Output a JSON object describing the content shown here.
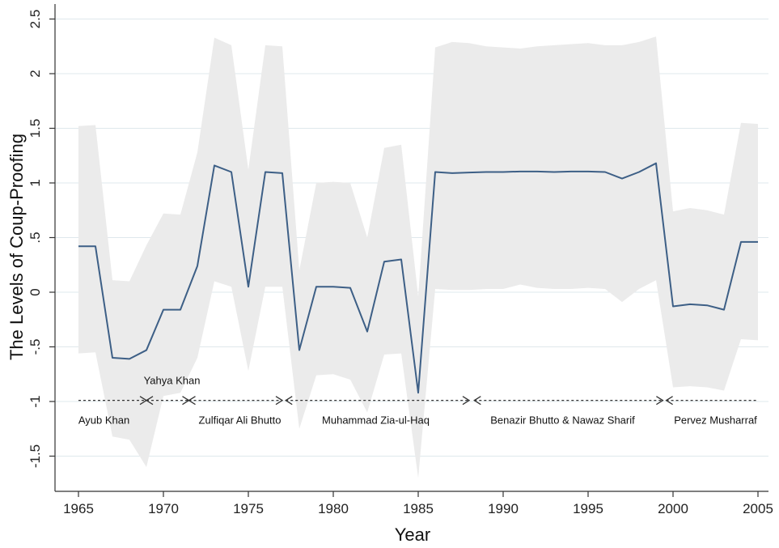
{
  "chart_data": {
    "type": "line",
    "title": "",
    "xlabel": "Year",
    "ylabel": "The Levels of Coup-Proofing",
    "xlim": [
      1965,
      2005
    ],
    "ylim": [
      -1.75,
      2.6
    ],
    "grid": true,
    "x_ticks": [
      1965,
      1970,
      1975,
      1980,
      1985,
      1990,
      1995,
      2000,
      2005
    ],
    "x_tick_labels": [
      "1965",
      "1970",
      "1975",
      "1980",
      "1985",
      "1990",
      "1995",
      "2000",
      "2005"
    ],
    "y_ticks": [
      -1.5,
      -1,
      -0.5,
      0,
      0.5,
      1,
      1.5,
      2,
      2.5
    ],
    "y_tick_labels": [
      "-1.5",
      "-1",
      "-.5",
      "0",
      ".5",
      "1",
      "1.5",
      "2",
      "2.5"
    ],
    "colors": {
      "line": "#3d5f86",
      "band": "#ebebeb",
      "grid": "#dfe8ec",
      "axis": "#333333",
      "arrow": "#333333"
    },
    "x": [
      1965,
      1966,
      1967,
      1968,
      1969,
      1970,
      1971,
      1972,
      1973,
      1974,
      1975,
      1976,
      1977,
      1978,
      1979,
      1980,
      1981,
      1982,
      1983,
      1984,
      1985,
      1986,
      1987,
      1988,
      1989,
      1990,
      1991,
      1992,
      1993,
      1994,
      1995,
      1996,
      1997,
      1998,
      1999,
      2000,
      2001,
      2002,
      2003,
      2004,
      2005
    ],
    "series": [
      {
        "values": [
          0.42,
          0.42,
          -0.6,
          -0.61,
          -0.53,
          -0.16,
          -0.16,
          0.24,
          1.16,
          1.1,
          0.05,
          1.1,
          1.09,
          -0.53,
          0.05,
          0.05,
          0.04,
          -0.36,
          0.28,
          0.3,
          -0.92,
          1.1,
          1.09,
          1.095,
          1.1,
          1.1,
          1.105,
          1.105,
          1.1,
          1.105,
          1.105,
          1.1,
          1.04,
          1.1,
          1.18,
          -0.13,
          -0.11,
          -0.12,
          -0.16,
          0.46,
          0.46
        ],
        "lower": [
          -0.56,
          -0.55,
          -1.32,
          -1.35,
          -1.6,
          -0.95,
          -0.92,
          -0.6,
          0.1,
          0.05,
          -0.72,
          0.05,
          0.05,
          -1.25,
          -0.76,
          -0.75,
          -0.8,
          -1.1,
          -0.57,
          -0.56,
          -1.7,
          0.03,
          0.02,
          0.02,
          0.03,
          0.03,
          0.07,
          0.04,
          0.03,
          0.03,
          0.04,
          0.03,
          -0.09,
          0.03,
          0.11,
          -0.87,
          -0.86,
          -0.87,
          -0.9,
          -0.43,
          -0.44
        ],
        "upper": [
          1.52,
          1.53,
          0.11,
          0.1,
          0.43,
          0.72,
          0.71,
          1.28,
          2.33,
          2.26,
          1.12,
          2.26,
          2.25,
          0.2,
          1.0,
          1.01,
          1.0,
          0.5,
          1.32,
          1.35,
          -0.04,
          2.24,
          2.29,
          2.28,
          2.25,
          2.24,
          2.23,
          2.25,
          2.26,
          2.27,
          2.28,
          2.26,
          2.26,
          2.29,
          2.34,
          0.74,
          0.77,
          0.75,
          0.71,
          1.55,
          1.54
        ]
      }
    ],
    "eras": [
      {
        "label": "Ayub Khan",
        "start": 1965,
        "end": 1969,
        "label_position": "below",
        "label_x": 1966.5,
        "marker": "right-arrow"
      },
      {
        "label": "Yahya Khan",
        "start": 1969,
        "end": 1971.5,
        "label_position": "above",
        "label_x": 1970.5,
        "marker": "both-arrows"
      },
      {
        "label": "Zulfiqar Ali Bhutto",
        "start": 1971.5,
        "end": 1977,
        "label_position": "below",
        "label_x": 1974.5,
        "marker": "both-arrows"
      },
      {
        "label": "Muhammad Zia-ul-Haq",
        "start": 1977.2,
        "end": 1988,
        "label_position": "below",
        "label_x": 1982.5,
        "marker": "both-arrows"
      },
      {
        "label": "Benazir Bhutto & Nawaz Sharif",
        "start": 1988.3,
        "end": 1999.4,
        "label_position": "below",
        "label_x": 1993.5,
        "marker": "both-arrows"
      },
      {
        "label": "Pervez Musharraf",
        "start": 1999.6,
        "end": 2005,
        "label_position": "below",
        "label_x": 2002.5,
        "marker": "left-arrow"
      }
    ],
    "era_line_y": -0.99
  }
}
